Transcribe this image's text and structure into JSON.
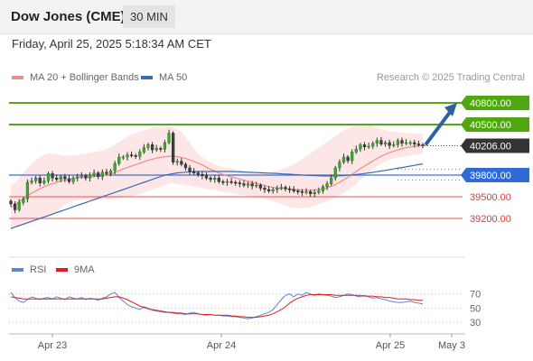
{
  "header": {
    "title": "Dow Jones (CME)",
    "timeframe": "30 MIN",
    "datetime": "Friday, April 25, 2025 5:18:34 AM CET"
  },
  "legend": {
    "ma20_label": "MA 20 + Bollinger Bands",
    "ma50_label": "MA 50",
    "credit": "Research © 2025 Trading Central",
    "rsi_label": "RSI",
    "rsi_ma_label": "9MA"
  },
  "colors": {
    "ma20": "#f08c8c",
    "ma50": "#3a6cb4",
    "bollinger_fill": "#fde2e2",
    "target_line": "#5aa51e",
    "resistance_badge": "#4fa80f",
    "pivot_line": "#3a70d8",
    "pivot_badge": "#2f6ad6",
    "support_line": "#e05757",
    "support_text": "#d93b3b",
    "last_price_badge": "#333333",
    "arrow": "#2f5fa5",
    "rsi_line": "#5b86d6",
    "rsi_ma_line": "#e01e1e"
  },
  "chart_data": [
    {
      "type": "candlestick",
      "title": "Dow Jones (CME)",
      "ylim": [
        38700,
        41100
      ],
      "x_tick_labels": [
        "Apr 23",
        "Apr 24",
        "Apr 25",
        "May 3"
      ],
      "levels": [
        {
          "name": "target_2",
          "value": 40800,
          "label": "40800.00",
          "style": "resistance"
        },
        {
          "name": "target_1",
          "value": 40500,
          "label": "40500.00",
          "style": "resistance"
        },
        {
          "name": "last_price",
          "value": 40206,
          "label": "40206.00",
          "style": "last"
        },
        {
          "name": "pivot",
          "value": 39800,
          "label": "39800.00",
          "style": "pivot"
        },
        {
          "name": "support_1",
          "value": 39500,
          "label": "39500.00",
          "style": "support"
        },
        {
          "name": "support_2",
          "value": 39200,
          "label": "39200.00",
          "style": "support"
        }
      ],
      "series": [
        {
          "name": "MA 20 + Bollinger Bands",
          "values_note": "smoothed 20-period average of close"
        },
        {
          "name": "MA 50",
          "values_note": "smoothed 50-period average of close"
        }
      ],
      "closes": [
        39400,
        39320,
        39420,
        39470,
        39700,
        39720,
        39760,
        39690,
        39720,
        39820,
        39760,
        39740,
        39780,
        39750,
        39710,
        39760,
        39780,
        39790,
        39760,
        39800,
        39830,
        39780,
        39840,
        39820,
        39860,
        39960,
        40050,
        40050,
        40080,
        40070,
        40060,
        40120,
        40180,
        40220,
        40150,
        40170,
        40160,
        40250,
        40380,
        39980,
        39990,
        39950,
        39900,
        39850,
        39830,
        39810,
        39790,
        39760,
        39740,
        39760,
        39710,
        39700,
        39710,
        39700,
        39690,
        39680,
        39660,
        39680,
        39650,
        39660,
        39620,
        39600,
        39580,
        39600,
        39620,
        39630,
        39610,
        39600,
        39580,
        39570,
        39560,
        39570,
        39540,
        39560,
        39580,
        39640,
        39680,
        39760,
        39900,
        39980,
        40050,
        40000,
        40120,
        40160,
        40220,
        40190,
        40200,
        40240,
        40280,
        40230,
        40250,
        40210,
        40220,
        40280,
        40240,
        40250,
        40250,
        40230,
        40220,
        40210
      ],
      "ma20_values": [
        39350,
        39390,
        39430,
        39470,
        39510,
        39550,
        39580,
        39610,
        39640,
        39660,
        39680,
        39700,
        39720,
        39730,
        39740,
        39750,
        39760,
        39765,
        39770,
        39775,
        39780,
        39785,
        39790,
        39800,
        39815,
        39835,
        39860,
        39885,
        39905,
        39925,
        39945,
        39965,
        39985,
        40005,
        40020,
        40035,
        40045,
        40055,
        40060,
        40060,
        40055,
        40045,
        40030,
        40010,
        39990,
        39965,
        39940,
        39910,
        39880,
        39855,
        39830,
        39810,
        39790,
        39775,
        39760,
        39745,
        39730,
        39715,
        39700,
        39685,
        39670,
        39655,
        39640,
        39630,
        39620,
        39615,
        39610,
        39605,
        39600,
        39595,
        39590,
        39590,
        39590,
        39595,
        39600,
        39610,
        39625,
        39645,
        39670,
        39700,
        39735,
        39770,
        39810,
        39850,
        39890,
        39925,
        39960,
        39995,
        40030,
        40060,
        40085,
        40110,
        40130,
        40150,
        40165,
        40180,
        40190,
        40200,
        40205,
        40210
      ],
      "bb_upper": [
        39650,
        39700,
        39760,
        39830,
        39900,
        39960,
        40010,
        40050,
        40080,
        40100,
        40100,
        40090,
        40080,
        40070,
        40070,
        40075,
        40080,
        40090,
        40100,
        40110,
        40120,
        40130,
        40140,
        40160,
        40190,
        40220,
        40260,
        40300,
        40330,
        40360,
        40380,
        40400,
        40420,
        40440,
        40455,
        40465,
        40470,
        40475,
        40470,
        40460,
        40440,
        40400,
        40330,
        40250,
        40170,
        40100,
        40050,
        40010,
        39980,
        39950,
        39930,
        39910,
        39900,
        39890,
        39880,
        39870,
        39860,
        39850,
        39840,
        39830,
        39830,
        39830,
        39835,
        39845,
        39860,
        39880,
        39900,
        39925,
        39950,
        39980,
        40020,
        40060,
        40100,
        40140,
        40180,
        40220,
        40260,
        40300,
        40340,
        40380,
        40420,
        40450,
        40470,
        40480,
        40485,
        40490,
        40490,
        40480,
        40460,
        40440,
        40420,
        40410,
        40400,
        40395,
        40390,
        40385,
        40380,
        40375,
        40370,
        40370
      ],
      "bb_lower": [
        39050,
        39080,
        39100,
        39110,
        39120,
        39140,
        39160,
        39180,
        39200,
        39220,
        39250,
        39290,
        39340,
        39390,
        39420,
        39440,
        39450,
        39460,
        39460,
        39460,
        39460,
        39460,
        39460,
        39460,
        39460,
        39470,
        39480,
        39490,
        39500,
        39510,
        39520,
        39540,
        39560,
        39580,
        39600,
        39620,
        39640,
        39660,
        39680,
        39690,
        39680,
        39670,
        39660,
        39650,
        39640,
        39630,
        39620,
        39610,
        39600,
        39590,
        39580,
        39570,
        39560,
        39550,
        39540,
        39530,
        39520,
        39510,
        39500,
        39490,
        39480,
        39470,
        39460,
        39440,
        39420,
        39400,
        39380,
        39360,
        39350,
        39340,
        39340,
        39350,
        39360,
        39380,
        39400,
        39420,
        39440,
        39460,
        39490,
        39520,
        39550,
        39590,
        39630,
        39680,
        39730,
        39780,
        39830,
        39880,
        39920,
        39960,
        39990,
        40010,
        40030,
        40040,
        40050,
        40060,
        40070,
        40080,
        40085,
        40090
      ],
      "ma50_values": [
        39060,
        39080,
        39100,
        39120,
        39140,
        39160,
        39180,
        39200,
        39220,
        39240,
        39260,
        39280,
        39300,
        39320,
        39340,
        39360,
        39380,
        39400,
        39420,
        39440,
        39460,
        39480,
        39500,
        39520,
        39540,
        39560,
        39580,
        39600,
        39620,
        39640,
        39660,
        39680,
        39700,
        39720,
        39740,
        39760,
        39780,
        39800,
        39810,
        39820,
        39830,
        39835,
        39840,
        39845,
        39850,
        39850,
        39850,
        39850,
        39850,
        39850,
        39850,
        39850,
        39850,
        39850,
        39848,
        39845,
        39842,
        39840,
        39838,
        39835,
        39832,
        39830,
        39828,
        39825,
        39822,
        39818,
        39815,
        39812,
        39808,
        39805,
        39800,
        39798,
        39795,
        39792,
        39790,
        39788,
        39787,
        39787,
        39788,
        39790,
        39793,
        39797,
        39802,
        39808,
        39815,
        39822,
        39830,
        39838,
        39847,
        39856,
        39865,
        39875,
        39885,
        39895,
        39905,
        39915,
        39925,
        39935,
        39945,
        39955
      ]
    },
    {
      "type": "line",
      "title": "",
      "ylim": [
        20,
        90
      ],
      "y_ticks": [
        70,
        50,
        30
      ],
      "series": [
        {
          "name": "RSI",
          "values": [
            72,
            65,
            60,
            58,
            62,
            66,
            64,
            62,
            64,
            65,
            63,
            66,
            64,
            62,
            66,
            64,
            63,
            65,
            62,
            64,
            63,
            61,
            64,
            66,
            70,
            72,
            65,
            60,
            55,
            52,
            50,
            48,
            52,
            50,
            47,
            46,
            45,
            44,
            44,
            43,
            42,
            42,
            41,
            43,
            44,
            42,
            41,
            40,
            41,
            40,
            40,
            39,
            39,
            38,
            38,
            37,
            36,
            35,
            36,
            38,
            40,
            42,
            44,
            48,
            55,
            62,
            68,
            70,
            66,
            70,
            68,
            72,
            70,
            68,
            70,
            69,
            68,
            67,
            65,
            66,
            68,
            70,
            69,
            67,
            66,
            68,
            66,
            64,
            65,
            63,
            62,
            60,
            59,
            58,
            58,
            59,
            60,
            58,
            57,
            56
          ]
        },
        {
          "name": "9MA",
          "values": [
            66,
            65,
            64,
            63,
            63,
            63,
            63,
            63,
            63,
            63,
            63,
            63,
            63,
            63,
            63,
            63,
            63,
            63,
            63,
            63,
            63,
            63,
            63,
            64,
            65,
            66,
            66,
            64,
            62,
            59,
            56,
            53,
            51,
            49,
            48,
            47,
            46,
            45,
            44,
            44,
            43,
            43,
            42,
            42,
            42,
            42,
            41,
            41,
            41,
            40,
            40,
            40,
            40,
            39,
            39,
            38,
            38,
            37,
            37,
            37,
            38,
            39,
            40,
            42,
            45,
            48,
            52,
            57,
            61,
            64,
            66,
            68,
            69,
            69,
            69,
            69,
            69,
            69,
            68,
            68,
            68,
            68,
            68,
            68,
            68,
            67,
            67,
            67,
            66,
            66,
            65,
            65,
            64,
            63,
            63,
            63,
            62,
            62,
            61,
            61
          ]
        }
      ]
    }
  ]
}
